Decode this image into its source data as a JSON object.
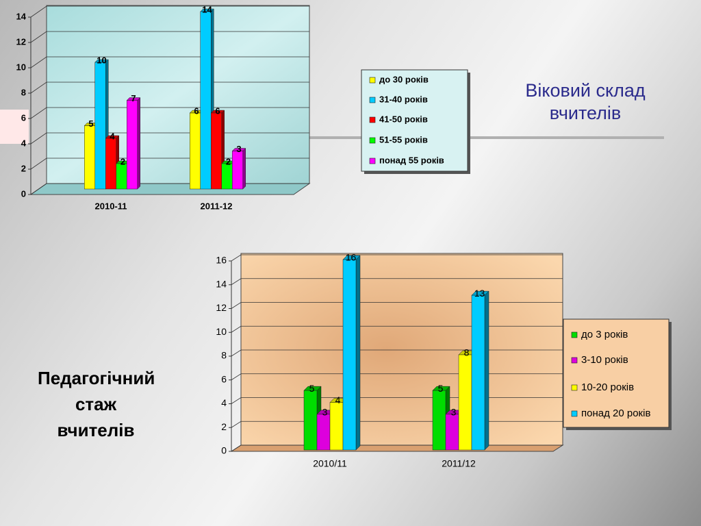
{
  "chart_data": [
    {
      "type": "bar",
      "title": "Віковий склад вчителів",
      "categories": [
        "2010-11",
        "2011-12"
      ],
      "series": [
        {
          "name": "до 30 років",
          "color": "#ffff00",
          "values": [
            5,
            6
          ]
        },
        {
          "name": "31-40 років",
          "color": "#00ccff",
          "values": [
            10,
            14
          ]
        },
        {
          "name": "41-50 років",
          "color": "#ff0000",
          "values": [
            4,
            6
          ]
        },
        {
          "name": "51-55 років",
          "color": "#00ff00",
          "values": [
            2,
            2
          ]
        },
        {
          "name": "понад 55 років",
          "color": "#ff00ff",
          "values": [
            7,
            3
          ]
        }
      ],
      "ylim": [
        0,
        14
      ],
      "yticks": [
        0,
        2,
        4,
        6,
        8,
        10,
        12,
        14
      ],
      "grid": true,
      "legend": "right"
    },
    {
      "type": "bar",
      "title": "Педагогічний стаж вчителів",
      "categories": [
        "2010/11",
        "2011/12"
      ],
      "series": [
        {
          "name": "до 3 років",
          "color": "#00dd00",
          "values": [
            5,
            5
          ]
        },
        {
          "name": "3-10 років",
          "color": "#dd00dd",
          "values": [
            3,
            3
          ]
        },
        {
          "name": "10-20 років",
          "color": "#ffff00",
          "values": [
            4,
            8
          ]
        },
        {
          "name": "понад 20 років",
          "color": "#00ccff",
          "values": [
            16,
            13
          ]
        }
      ],
      "ylim": [
        0,
        16
      ],
      "yticks": [
        0,
        2,
        4,
        6,
        8,
        10,
        12,
        14,
        16
      ],
      "grid": true,
      "legend": "right"
    }
  ]
}
